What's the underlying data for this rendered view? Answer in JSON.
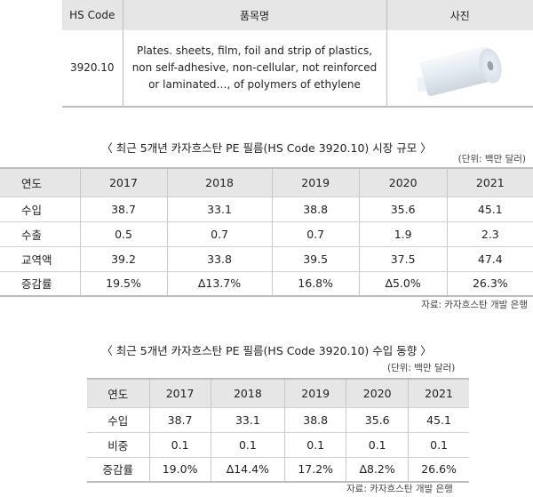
{
  "product_table": {
    "headers": [
      "HS Code",
      "품목명",
      "사진"
    ],
    "hs_code": "3920.10",
    "description_lines": [
      "Plates. sheets, film, foil and strip of plastics,",
      "non self-adhesive, non-cellular, not reinforced",
      "or laminated…, of polymers of ethylene"
    ],
    "photo_icon": "plastic-film-roll-icon"
  },
  "market_table": {
    "title": "〈 최근 5개년 카자흐스탄 PE 필름(HS Code 3920.10) 시장 규모 〉",
    "unit": "(단위: 백만 달러)",
    "headers": [
      "연도",
      "2017",
      "2018",
      "2019",
      "2020",
      "2021"
    ],
    "rows": [
      [
        "수입",
        "38.7",
        "33.1",
        "38.8",
        "35.6",
        "45.1"
      ],
      [
        "수출",
        "0.5",
        "0.7",
        "0.7",
        "1.9",
        "2.3"
      ],
      [
        "교역액",
        "39.2",
        "33.8",
        "39.5",
        "37.5",
        "47.4"
      ],
      [
        "증감률",
        "19.5%",
        "∆13.7%",
        "16.8%",
        "∆5.0%",
        "26.3%"
      ]
    ],
    "source": "자료: 카자흐스탄 개발 은행"
  },
  "import_table": {
    "title": "〈 최근 5개년 카자흐스탄 PE 필름(HS Code 3920.10) 수입 동향 〉",
    "unit": "(단위: 백만 달러)",
    "headers": [
      "연도",
      "2017",
      "2018",
      "2019",
      "2020",
      "2021"
    ],
    "rows": [
      [
        "수입",
        "38.7",
        "33.1",
        "38.8",
        "35.6",
        "45.1"
      ],
      [
        "비중",
        "0.1",
        "0.1",
        "0.1",
        "0.1",
        "0.1"
      ],
      [
        "증감률",
        "19.0%",
        "∆14.4%",
        "17.2%",
        "∆8.2%",
        "26.6%"
      ]
    ],
    "source": "자료: 카자흐스탄 개발 은행"
  }
}
